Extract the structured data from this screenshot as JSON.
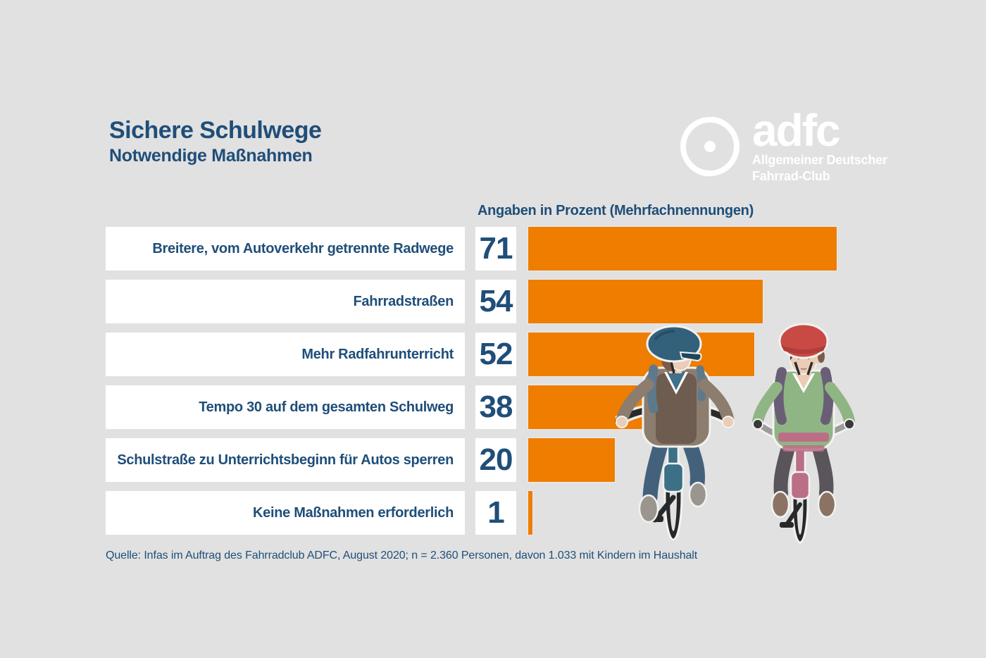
{
  "header": {
    "title": "Sichere Schulwege",
    "subtitle": "Notwendige Maßnahmen"
  },
  "logo": {
    "brand": "adfc",
    "subline1": "Allgemeiner Deutscher",
    "subline2": "Fahrrad-Club",
    "wheel_icon": "bicycle-wheel-icon"
  },
  "chart_data": {
    "type": "bar",
    "orientation": "horizontal",
    "title": "Sichere Schulwege – Notwendige Maßnahmen",
    "unit_label": "Angaben in Prozent (Mehrfachnennungen)",
    "categories": [
      "Breitere, vom Autoverkehr getrennte Radwege",
      "Fahrradstraßen",
      "Mehr Radfahrunterricht",
      "Tempo 30 auf dem gesamten Schulweg",
      "Schulstraße zu Unterrichtsbeginn für Autos sperren",
      "Keine Maßnahmen erforderlich"
    ],
    "values": [
      71,
      54,
      52,
      38,
      20,
      1
    ],
    "xlim": [
      0,
      71
    ],
    "grid": false,
    "legend_position": "none",
    "bar_color": "#ee7d00"
  },
  "source": "Quelle: Infas im Auftrag des Fahrradclub ADFC, August 2020; n = 2.360 Personen, davon 1.033 mit Kindern im Haushalt",
  "colors": {
    "background": "#e1e1e1",
    "text_blue": "#1f4e79",
    "bar_orange": "#ee7d00",
    "box_white": "#ffffff",
    "logo_white": "#ffffff"
  },
  "illustration": {
    "name": "two-children-cycling"
  }
}
